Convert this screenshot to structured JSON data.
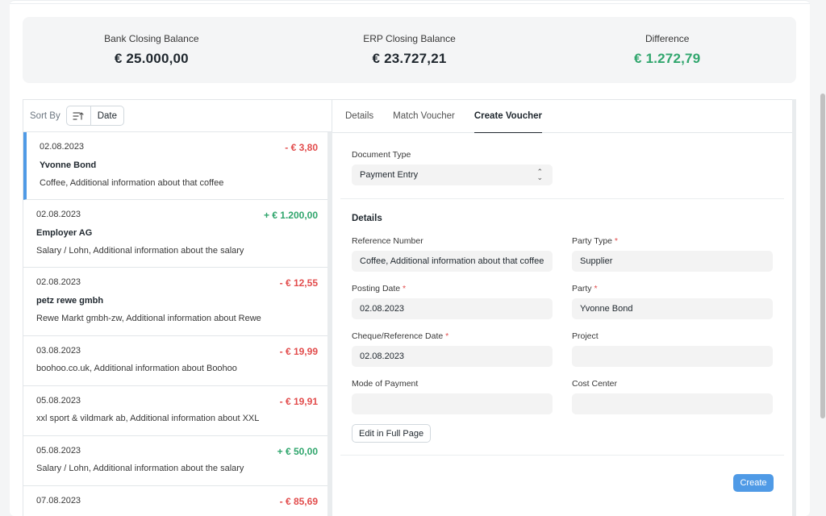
{
  "summary": {
    "bank_label": "Bank Closing Balance",
    "bank_value": "€ 25.000,00",
    "erp_label": "ERP Closing Balance",
    "erp_value": "€ 23.727,21",
    "diff_label": "Difference",
    "diff_value": "€ 1.272,79"
  },
  "sort": {
    "label": "Sort By",
    "field": "Date",
    "icon": "sort-ascending-icon"
  },
  "transactions": [
    {
      "date": "02.08.2023",
      "amount": "- € 3,80",
      "party": "Yvonne Bond",
      "desc": "Coffee, Additional information about that coffee"
    },
    {
      "date": "02.08.2023",
      "amount": "+ € 1.200,00",
      "party": "Employer AG",
      "desc": "Salary / Lohn, Additional information about the salary"
    },
    {
      "date": "02.08.2023",
      "amount": "- € 12,55",
      "party": "petz rewe gmbh",
      "desc": "Rewe Markt gmbh-zw, Additional information about Rewe"
    },
    {
      "date": "03.08.2023",
      "amount": "- € 19,99",
      "party": "",
      "desc": "boohoo.co.uk, Additional information about Boohoo"
    },
    {
      "date": "05.08.2023",
      "amount": "- € 19,91",
      "party": "",
      "desc": "xxl sport & vildmark ab, Additional information about XXL"
    },
    {
      "date": "05.08.2023",
      "amount": "+ € 50,00",
      "party": "",
      "desc": "Salary / Lohn, Additional information about the salary"
    },
    {
      "date": "07.08.2023",
      "amount": "- € 85,69",
      "party": "",
      "desc": ""
    }
  ],
  "tabs": [
    "Details",
    "Match Voucher",
    "Create Voucher"
  ],
  "form": {
    "doc_type_label": "Document Type",
    "doc_type_value": "Payment Entry",
    "details_title": "Details",
    "ref_no_label": "Reference Number",
    "ref_no_value": "Coffee, Additional information about that coffee",
    "posting_date_label": "Posting Date",
    "posting_date_value": "02.08.2023",
    "cheque_date_label": "Cheque/Reference Date",
    "cheque_date_value": "02.08.2023",
    "mode_label": "Mode of Payment",
    "mode_value": "",
    "party_type_label": "Party Type",
    "party_type_value": "Supplier",
    "party_label": "Party",
    "party_value": "Yvonne Bond",
    "project_label": "Project",
    "project_value": "",
    "cost_center_label": "Cost Center",
    "cost_center_value": "",
    "required_mark": "*",
    "edit_full_page": "Edit in Full Page",
    "create": "Create"
  },
  "colors": {
    "accent": "#4f9ae6",
    "positive": "#30a66d",
    "negative": "#e24c4c"
  }
}
